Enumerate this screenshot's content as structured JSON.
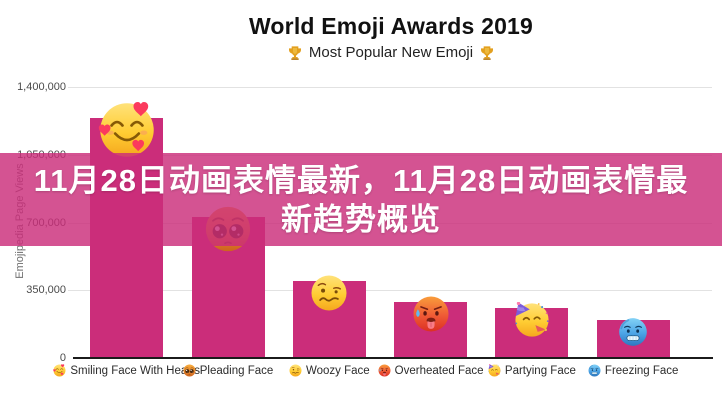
{
  "header": {
    "title": "World Emoji Awards 2019",
    "subtitle": "Most Popular New Emoji",
    "trophy_icon": "trophy",
    "trophy_color": "#e3a01f"
  },
  "overlay": {
    "text": "11月28日动画表情最新，11月28日动画表情最新趋势概览",
    "lines": [
      "11月28日动画表情最新，11月28日动画表情最",
      "新趋势概览"
    ],
    "background": "#cb2d7a",
    "opacity": 0.82,
    "text_color": "#ffffff"
  },
  "chart_data": {
    "type": "bar",
    "title": "World Emoji Awards 2019",
    "subtitle": "Most Popular New Emoji",
    "xlabel": "",
    "ylabel": "Emojipedia Page Views",
    "ylim": [
      0,
      1400000
    ],
    "yticks": [
      0,
      350000,
      700000,
      1050000,
      1400000
    ],
    "ytick_labels": [
      "0",
      "350,000",
      "700,000",
      "1,050,000",
      "1,400,000"
    ],
    "grid": true,
    "legend": false,
    "bar_color": "#cb2d7a",
    "categories": [
      "Smiling Face With Hearts",
      "Pleading Face",
      "Woozy Face",
      "Overheated Face",
      "Partying Face",
      "Freezing Face"
    ],
    "emoji_icons": [
      "smiling-face-with-hearts",
      "pleading-face",
      "woozy-face",
      "overheated-face",
      "partying-face",
      "freezing-face"
    ],
    "values": [
      1240000,
      730000,
      400000,
      290000,
      260000,
      195000
    ]
  }
}
